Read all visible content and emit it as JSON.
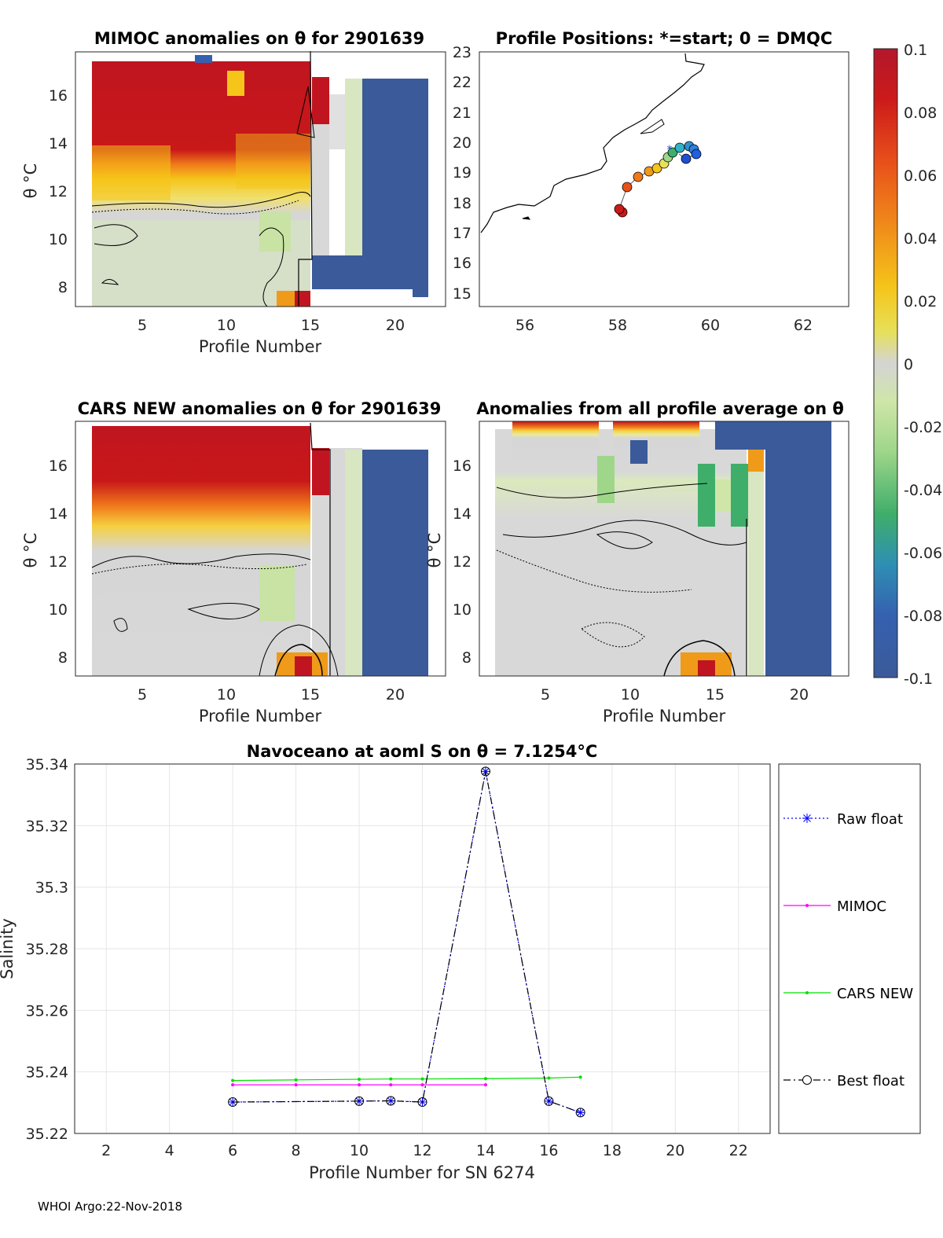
{
  "stamp": "WHOI Argo:22-Nov-2018",
  "colorbar": {
    "ticks": [
      "0.1",
      "0.08",
      "0.06",
      "0.04",
      "0.02",
      "0",
      "-0.02",
      "-0.04",
      "-0.06",
      "-0.08",
      "-0.1"
    ],
    "stops": [
      "#b2182b",
      "#cc1a1a",
      "#e8501a",
      "#f08a1a",
      "#f5c51a",
      "#e6e05a",
      "#d4d4d4",
      "#cfe6a8",
      "#9fd68a",
      "#3fae6a",
      "#2e8fb3",
      "#3561b0",
      "#3b5a99"
    ]
  },
  "panels": {
    "mimoc": {
      "title": "MIMOC anomalies on θ  for 2901639",
      "xlabel": "Profile Number",
      "ylabel": "θ °C",
      "xticks": [
        "5",
        "10",
        "15",
        "20"
      ],
      "yticks": [
        "16",
        "14",
        "12",
        "10",
        "8"
      ]
    },
    "positions": {
      "title": "Profile Positions: *=start; 0 = DMQC",
      "xticks": [
        "56",
        "58",
        "60",
        "62"
      ],
      "yticks": [
        "23",
        "22",
        "21",
        "20",
        "19",
        "18",
        "17",
        "16",
        "15"
      ]
    },
    "cars": {
      "title": "CARS NEW anomalies on θ for 2901639",
      "xlabel": "Profile Number",
      "ylabel": "θ °C",
      "xticks": [
        "5",
        "10",
        "15",
        "20"
      ],
      "yticks": [
        "16",
        "14",
        "12",
        "10",
        "8"
      ]
    },
    "allavg": {
      "title": "Anomalies from all profile average on θ",
      "xlabel": "Profile Number",
      "ylabel": "θ °C",
      "xticks": [
        "5",
        "10",
        "15",
        "20"
      ],
      "yticks": [
        "16",
        "14",
        "12",
        "10",
        "8"
      ]
    }
  },
  "chart_data": {
    "type": "line",
    "title": "Navoceano at aoml S on θ = 7.1254°C",
    "xlabel": "Profile Number for SN 6274",
    "ylabel": "Salinity",
    "xlim": [
      1,
      23
    ],
    "ylim": [
      35.22,
      35.34
    ],
    "xticks": [
      "2",
      "4",
      "6",
      "8",
      "10",
      "12",
      "14",
      "16",
      "18",
      "20",
      "22"
    ],
    "yticks": [
      "35.34",
      "35.32",
      "35.3",
      "35.28",
      "35.26",
      "35.24",
      "35.22"
    ],
    "series": [
      {
        "name": "Raw float",
        "color": "#0000ff",
        "marker": "star",
        "x": [
          6,
          10,
          11,
          12,
          14,
          16,
          17
        ],
        "values": [
          35.2302,
          35.2305,
          35.2306,
          35.2302,
          35.3376,
          35.2305,
          35.2268
        ]
      },
      {
        "name": "MIMOC",
        "color": "#ff00ff",
        "marker": "dot",
        "x": [
          6,
          8,
          10,
          11,
          12,
          14
        ],
        "values": [
          35.2358,
          35.2358,
          35.2358,
          35.2358,
          35.2358,
          35.2358
        ]
      },
      {
        "name": "CARS NEW",
        "color": "#00e000",
        "marker": "dot",
        "x": [
          6,
          8,
          10,
          11,
          12,
          14,
          16,
          17
        ],
        "values": [
          35.2372,
          35.2374,
          35.2376,
          35.2377,
          35.2377,
          35.2378,
          35.238,
          35.2383
        ]
      },
      {
        "name": "Best float",
        "color": "#000000",
        "marker": "circle",
        "x": [
          6,
          10,
          11,
          12,
          14,
          16,
          17
        ],
        "values": [
          35.2302,
          35.2305,
          35.2306,
          35.2302,
          35.3376,
          35.2305,
          35.2268
        ]
      }
    ]
  }
}
